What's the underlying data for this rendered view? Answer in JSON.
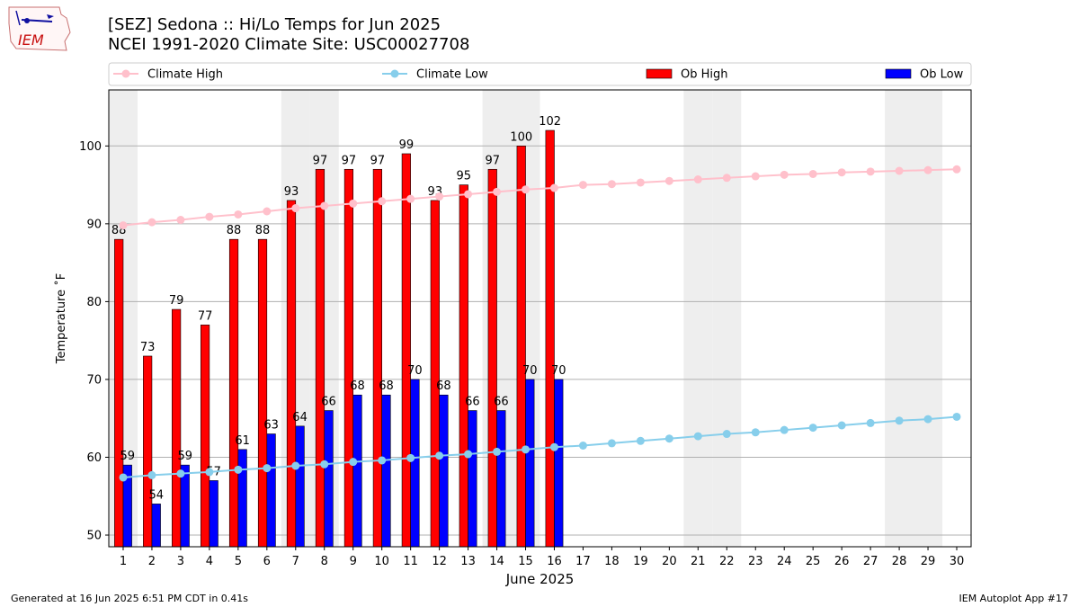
{
  "header": {
    "logo_text": "IEM",
    "title_line1": "[SEZ] Sedona :: Hi/Lo Temps for Jun 2025",
    "title_line2": "NCEI 1991-2020 Climate Site: USC00027708"
  },
  "footer": {
    "left": "Generated at 16 Jun 2025 6:51 PM CDT in 0.41s",
    "right": "IEM Autoplot App #17"
  },
  "colors": {
    "climate_high": "#ffc0cb",
    "climate_low": "#87ceeb",
    "ob_high": "#ff0000",
    "ob_low": "#0000ff",
    "weekend_shade": "#eeeeee",
    "grid": "#b0b0b0"
  },
  "chart_data": {
    "type": "bar",
    "xlabel": "June 2025",
    "ylabel": "Temperature ˚F",
    "ylim": [
      48.5,
      107.2
    ],
    "xlim": [
      0.5,
      30.5
    ],
    "yticks": [
      50,
      60,
      70,
      80,
      90,
      100
    ],
    "grid": "y",
    "legend_position": "top",
    "legend": [
      {
        "label": "Climate High",
        "kind": "line",
        "color": "#ffc0cb"
      },
      {
        "label": "Climate Low",
        "kind": "line",
        "color": "#87ceeb"
      },
      {
        "label": "Ob High",
        "kind": "bar",
        "color": "#ff0000"
      },
      {
        "label": "Ob Low",
        "kind": "bar",
        "color": "#0000ff"
      }
    ],
    "days": [
      1,
      2,
      3,
      4,
      5,
      6,
      7,
      8,
      9,
      10,
      11,
      12,
      13,
      14,
      15,
      16,
      17,
      18,
      19,
      20,
      21,
      22,
      23,
      24,
      25,
      26,
      27,
      28,
      29,
      30
    ],
    "weekend_shaded_days": [
      1,
      7,
      8,
      14,
      15,
      21,
      22,
      28,
      29
    ],
    "ob_high": [
      88,
      73,
      79,
      77,
      88,
      88,
      93,
      97,
      97,
      97,
      99,
      93,
      95,
      97,
      100,
      102
    ],
    "ob_low": [
      59,
      54,
      59,
      57,
      61,
      63,
      64,
      66,
      68,
      68,
      70,
      68,
      66,
      66,
      70,
      70
    ],
    "climate_high": [
      89.8,
      90.2,
      90.5,
      90.9,
      91.2,
      91.6,
      92.0,
      92.3,
      92.6,
      92.9,
      93.2,
      93.5,
      93.8,
      94.1,
      94.4,
      94.6,
      95.0,
      95.1,
      95.3,
      95.5,
      95.7,
      95.9,
      96.1,
      96.3,
      96.4,
      96.6,
      96.7,
      96.8,
      96.9,
      97.0
    ],
    "climate_low": [
      57.4,
      57.7,
      57.9,
      58.1,
      58.4,
      58.6,
      58.9,
      59.1,
      59.4,
      59.6,
      59.9,
      60.2,
      60.4,
      60.7,
      61.0,
      61.3,
      61.5,
      61.8,
      62.1,
      62.4,
      62.7,
      63.0,
      63.2,
      63.5,
      63.8,
      64.1,
      64.4,
      64.7,
      64.9,
      65.2
    ]
  }
}
